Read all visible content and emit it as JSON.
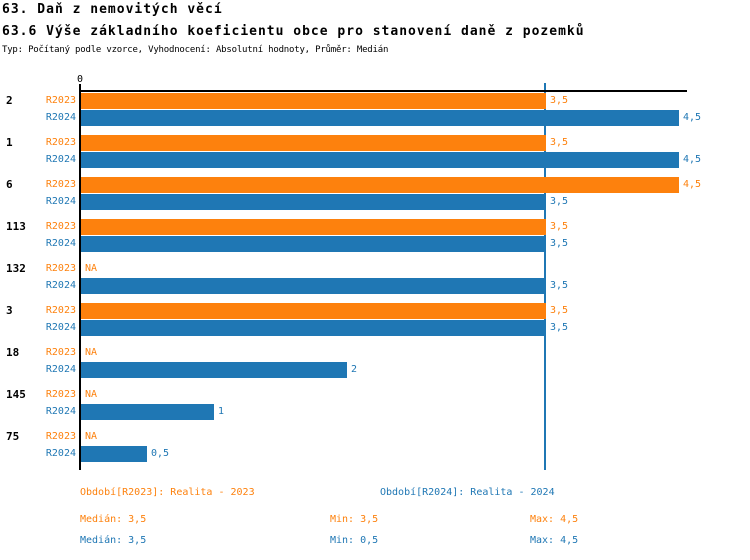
{
  "header": {
    "title": "63. Daň z nemovitých věcí",
    "subtitle": "63.6 Výše základního koeficientu obce pro stanovení daně z pozemků",
    "meta": "Typ: Počítaný podle vzorce, Vyhodnocení: Absolutní hodnoty, Průměr: Medián"
  },
  "colors": {
    "r2023": "#fd810d",
    "r2024": "#1f77b4",
    "median_line": "#1f77b4",
    "axis": "#000000"
  },
  "chart_data": {
    "type": "bar",
    "orientation": "horizontal",
    "title": "63.6 Výše základního koeficientu obce pro stanovení daně z pozemků",
    "categories": [
      "2",
      "1",
      "6",
      "113",
      "132",
      "3",
      "18",
      "145",
      "75"
    ],
    "series": [
      {
        "name": "R2023",
        "color": "#fd810d",
        "values": [
          3.5,
          3.5,
          4.5,
          3.5,
          null,
          3.5,
          null,
          null,
          null
        ],
        "labels": [
          "3,5",
          "3,5",
          "4,5",
          "3,5",
          "NA",
          "3,5",
          "NA",
          "NA",
          "NA"
        ]
      },
      {
        "name": "R2024",
        "color": "#1f77b4",
        "values": [
          4.5,
          4.5,
          3.5,
          3.5,
          3.5,
          3.5,
          2,
          1,
          0.5
        ],
        "labels": [
          "4,5",
          "4,5",
          "3,5",
          "3,5",
          "3,5",
          "3,5",
          "2",
          "1",
          "0,5"
        ]
      }
    ],
    "xlim": [
      0,
      4.56
    ],
    "x_origin_label": "0",
    "null_label": "NA",
    "median_line_value": 3.5,
    "grid": false,
    "legend_position": "bottom"
  },
  "legend": [
    {
      "label": "Období[R2023]: Realita - 2023",
      "color": "#fd810d"
    },
    {
      "label": "Období[R2024]: Realita - 2024",
      "color": "#1f77b4"
    }
  ],
  "stats": [
    {
      "color": "#fd810d",
      "median": "Medián: 3,5",
      "min": "Min: 3,5",
      "max": "Max: 4,5"
    },
    {
      "color": "#1f77b4",
      "median": "Medián: 3,5",
      "min": "Min: 0,5",
      "max": "Max: 4,5"
    }
  ]
}
